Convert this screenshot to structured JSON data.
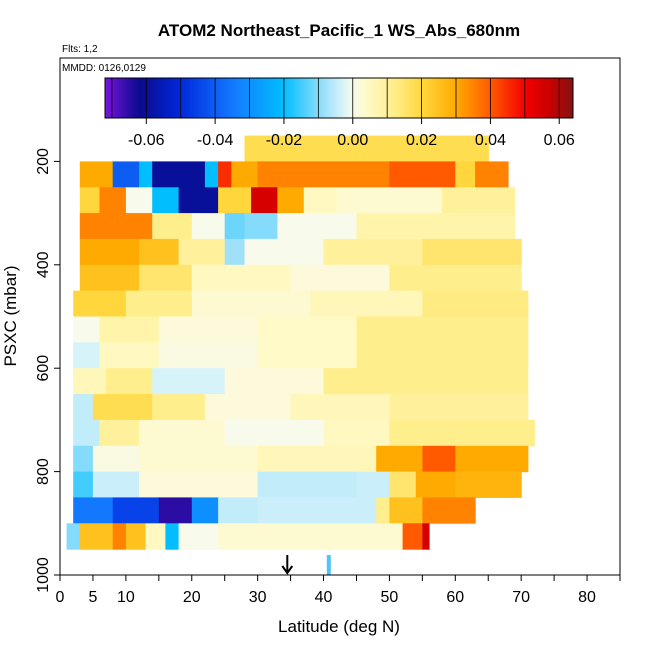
{
  "chart_data": {
    "type": "heatmap",
    "title": "ATOM2 Northeast_Pacific_1 WS_Abs_680nm",
    "flights_label": "Flts: 1,2",
    "dates_label": "MMDD: 0126,0129",
    "xlabel": "Latitude (deg N)",
    "ylabel": "PSXC (mbar)",
    "xlim": [
      0,
      85
    ],
    "ylim": [
      1000,
      0
    ],
    "x_ticks": [
      0,
      5,
      10,
      20,
      30,
      40,
      50,
      60,
      70,
      80
    ],
    "x_tick_labels": [
      "0",
      "5",
      "10",
      "20",
      "30",
      "40",
      "50",
      "60",
      "70",
      "80"
    ],
    "x_minor_ticks": [
      15,
      25,
      35,
      45,
      55,
      65,
      75,
      85
    ],
    "y_ticks": [
      200,
      400,
      600,
      800,
      1000
    ],
    "y_tick_labels": [
      "200",
      "400",
      "600",
      "800",
      "1000"
    ],
    "colorbar": {
      "min": -0.072,
      "max": 0.064,
      "ticks": [
        -0.06,
        -0.04,
        -0.02,
        0.0,
        0.02,
        0.04,
        0.06
      ],
      "tick_labels": [
        "-0.06",
        "-0.04",
        "-0.02",
        "0.00",
        "0.02",
        "0.04",
        "0.06"
      ]
    },
    "markers": [
      {
        "kind": "arrow",
        "latitude": 34.5,
        "color": "#000000"
      },
      {
        "kind": "bar",
        "latitude": 40.8,
        "color": "#4FC3F7"
      }
    ],
    "rows": [
      {
        "p_top": 150,
        "p_bot": 200,
        "segments": [
          [
            28,
            65,
            0.018
          ]
        ]
      },
      {
        "p_top": 200,
        "p_bot": 250,
        "segments": [
          [
            3,
            8,
            0.03
          ],
          [
            8,
            12,
            -0.04
          ],
          [
            12,
            14,
            -0.02
          ],
          [
            14,
            22,
            -0.06
          ],
          [
            22,
            24,
            -0.02
          ],
          [
            24,
            26,
            0.045
          ],
          [
            26,
            30,
            0.03
          ],
          [
            30,
            50,
            0.035
          ],
          [
            50,
            60,
            0.04
          ],
          [
            60,
            63,
            0.02
          ],
          [
            63,
            68,
            0.035
          ]
        ]
      },
      {
        "p_top": 250,
        "p_bot": 300,
        "segments": [
          [
            3,
            6,
            0.02
          ],
          [
            6,
            10,
            0.035
          ],
          [
            10,
            14,
            0.0
          ],
          [
            14,
            18,
            -0.02
          ],
          [
            18,
            24,
            -0.06
          ],
          [
            24,
            29,
            0.02
          ],
          [
            29,
            33,
            0.055
          ],
          [
            33,
            37,
            0.03
          ],
          [
            37,
            42,
            0.005
          ],
          [
            42,
            58,
            0.003
          ],
          [
            58,
            69,
            0.01
          ]
        ]
      },
      {
        "p_top": 300,
        "p_bot": 350,
        "segments": [
          [
            3,
            14,
            0.035
          ],
          [
            14,
            20,
            0.012
          ],
          [
            20,
            25,
            0.0
          ],
          [
            25,
            28,
            -0.012
          ],
          [
            28,
            33,
            -0.01
          ],
          [
            33,
            45,
            0.0
          ],
          [
            45,
            69,
            0.008
          ]
        ]
      },
      {
        "p_top": 350,
        "p_bot": 400,
        "segments": [
          [
            3,
            12,
            0.03
          ],
          [
            12,
            18,
            0.025
          ],
          [
            18,
            25,
            0.01
          ],
          [
            25,
            28,
            -0.008
          ],
          [
            28,
            40,
            0.0
          ],
          [
            40,
            55,
            0.01
          ],
          [
            55,
            70,
            0.015
          ]
        ]
      },
      {
        "p_top": 400,
        "p_bot": 450,
        "segments": [
          [
            3,
            12,
            0.025
          ],
          [
            12,
            20,
            0.015
          ],
          [
            20,
            35,
            0.005
          ],
          [
            35,
            50,
            0.002
          ],
          [
            50,
            70,
            0.012
          ]
        ]
      },
      {
        "p_top": 450,
        "p_bot": 500,
        "segments": [
          [
            2,
            10,
            0.02
          ],
          [
            10,
            20,
            0.012
          ],
          [
            20,
            38,
            0.003
          ],
          [
            38,
            55,
            0.006
          ],
          [
            55,
            71,
            0.013
          ]
        ]
      },
      {
        "p_top": 500,
        "p_bot": 550,
        "segments": [
          [
            2,
            6,
            0.0
          ],
          [
            6,
            15,
            0.008
          ],
          [
            15,
            30,
            0.002
          ],
          [
            30,
            45,
            0.004
          ],
          [
            45,
            71,
            0.012
          ]
        ]
      },
      {
        "p_top": 550,
        "p_bot": 600,
        "segments": [
          [
            2,
            6,
            -0.003
          ],
          [
            6,
            15,
            0.005
          ],
          [
            15,
            30,
            0.001
          ],
          [
            30,
            45,
            0.004
          ],
          [
            45,
            71,
            0.012
          ]
        ]
      },
      {
        "p_top": 600,
        "p_bot": 650,
        "segments": [
          [
            2,
            7,
            0.006
          ],
          [
            7,
            14,
            0.012
          ],
          [
            14,
            25,
            -0.003
          ],
          [
            25,
            40,
            0.002
          ],
          [
            40,
            71,
            0.012
          ]
        ]
      },
      {
        "p_top": 650,
        "p_bot": 700,
        "segments": [
          [
            2,
            5,
            -0.005
          ],
          [
            5,
            14,
            0.018
          ],
          [
            14,
            22,
            0.012
          ],
          [
            22,
            35,
            0.002
          ],
          [
            35,
            50,
            0.006
          ],
          [
            50,
            71,
            0.01
          ]
        ]
      },
      {
        "p_top": 700,
        "p_bot": 750,
        "segments": [
          [
            2,
            6,
            -0.005
          ],
          [
            6,
            12,
            0.01
          ],
          [
            12,
            25,
            0.003
          ],
          [
            25,
            40,
            0.0
          ],
          [
            40,
            50,
            0.005
          ],
          [
            50,
            72,
            0.012
          ]
        ]
      },
      {
        "p_top": 750,
        "p_bot": 800,
        "segments": [
          [
            2,
            5,
            -0.01
          ],
          [
            5,
            12,
            0.001
          ],
          [
            12,
            30,
            0.003
          ],
          [
            30,
            48,
            0.006
          ],
          [
            48,
            55,
            0.03
          ],
          [
            55,
            60,
            0.04
          ],
          [
            60,
            71,
            0.03
          ]
        ]
      },
      {
        "p_top": 800,
        "p_bot": 850,
        "segments": [
          [
            2,
            5,
            -0.015
          ],
          [
            5,
            12,
            -0.004
          ],
          [
            12,
            30,
            0.002
          ],
          [
            30,
            45,
            -0.005
          ],
          [
            45,
            50,
            -0.004
          ],
          [
            50,
            54,
            0.015
          ],
          [
            54,
            60,
            0.03
          ],
          [
            60,
            70,
            0.028
          ]
        ]
      },
      {
        "p_top": 850,
        "p_bot": 900,
        "segments": [
          [
            2,
            8,
            -0.035
          ],
          [
            8,
            15,
            -0.045
          ],
          [
            15,
            20,
            -0.065
          ],
          [
            20,
            24,
            -0.03
          ],
          [
            24,
            30,
            -0.005
          ],
          [
            30,
            48,
            -0.004
          ],
          [
            48,
            50,
            0.012
          ],
          [
            50,
            55,
            0.025
          ],
          [
            55,
            63,
            0.035
          ]
        ]
      },
      {
        "p_top": 900,
        "p_bot": 950,
        "segments": [
          [
            1,
            3,
            -0.01
          ],
          [
            3,
            8,
            0.025
          ],
          [
            8,
            10,
            0.035
          ],
          [
            10,
            13,
            0.025
          ],
          [
            13,
            16,
            0.005
          ],
          [
            16,
            18,
            -0.02
          ],
          [
            18,
            24,
            0.0
          ],
          [
            24,
            52,
            0.003
          ],
          [
            52,
            55,
            0.04
          ],
          [
            55,
            56,
            0.055
          ]
        ]
      }
    ]
  }
}
